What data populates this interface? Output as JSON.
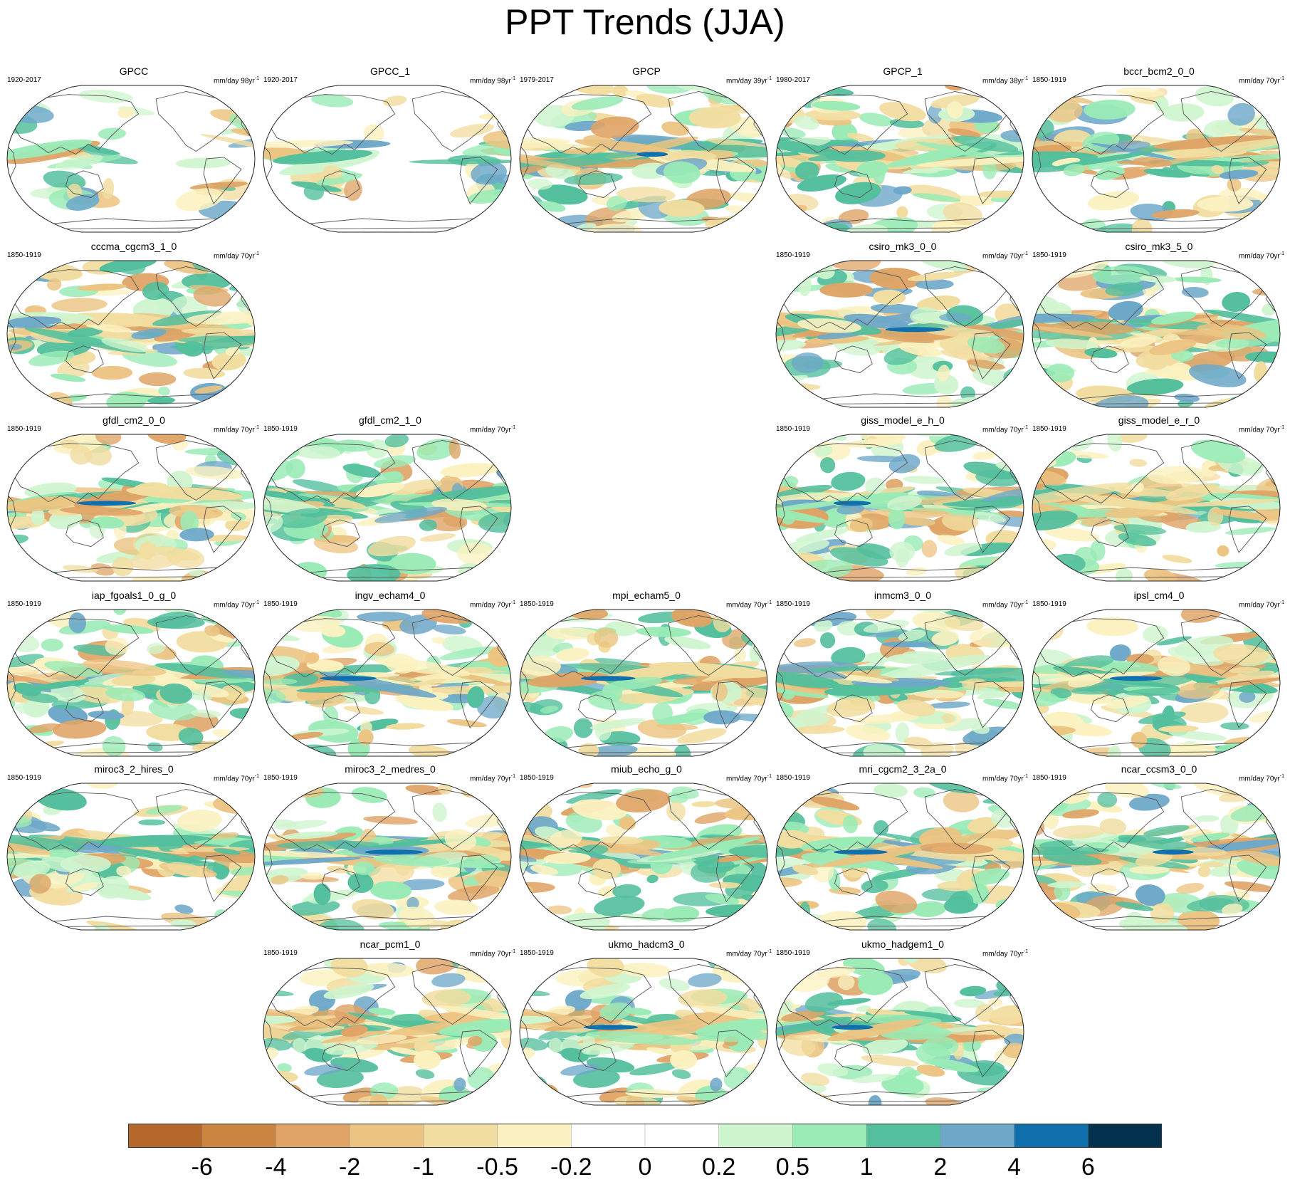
{
  "figure": {
    "title": "PPT Trends (JJA)"
  },
  "panels": [
    {
      "name": "GPCC",
      "period": "1920-2017",
      "units": "mm/day 98yr",
      "units_exp": "-1",
      "col": 0,
      "row": 0,
      "seed": 11,
      "coverage": "land"
    },
    {
      "name": "GPCC_1",
      "period": "1920-2017",
      "units": "mm/day 98yr",
      "units_exp": "-1",
      "col": 1,
      "row": 0,
      "seed": 12,
      "coverage": "land"
    },
    {
      "name": "GPCP",
      "period": "1979-2017",
      "units": "mm/day 39yr",
      "units_exp": "-1",
      "col": 2,
      "row": 0,
      "seed": 13,
      "coverage": "global"
    },
    {
      "name": "GPCP_1",
      "period": "1980-2017",
      "units": "mm/day 38yr",
      "units_exp": "-1",
      "col": 3,
      "row": 0,
      "seed": 14,
      "coverage": "global"
    },
    {
      "name": "bccr_bcm2_0_0",
      "period": "1850-1919",
      "units": "mm/day 70yr",
      "units_exp": "-1",
      "col": 4,
      "row": 0,
      "seed": 15,
      "coverage": "global"
    },
    {
      "name": "cccma_cgcm3_1_0",
      "period": "1850-1919",
      "units": "mm/day 70yr",
      "units_exp": "-1",
      "col": 0,
      "row": 1,
      "seed": 21,
      "coverage": "global"
    },
    {
      "name": "csiro_mk3_0_0",
      "period": "1850-1919",
      "units": "mm/day 70yr",
      "units_exp": "-1",
      "col": 3,
      "row": 1,
      "seed": 24,
      "coverage": "global"
    },
    {
      "name": "csiro_mk3_5_0",
      "period": "1850-1919",
      "units": "mm/day 70yr",
      "units_exp": "-1",
      "col": 4,
      "row": 1,
      "seed": 25,
      "coverage": "global"
    },
    {
      "name": "gfdl_cm2_0_0",
      "period": "1850-1919",
      "units": "mm/day 70yr",
      "units_exp": "-1",
      "col": 0,
      "row": 2,
      "seed": 31,
      "coverage": "global"
    },
    {
      "name": "gfdl_cm2_1_0",
      "period": "1850-1919",
      "units": "mm/day 70yr",
      "units_exp": "-1",
      "col": 1,
      "row": 2,
      "seed": 32,
      "coverage": "global"
    },
    {
      "name": "giss_model_e_h_0",
      "period": "1850-1919",
      "units": "mm/day 70yr",
      "units_exp": "-1",
      "col": 3,
      "row": 2,
      "seed": 34,
      "coverage": "global"
    },
    {
      "name": "giss_model_e_r_0",
      "period": "1850-1919",
      "units": "mm/day 70yr",
      "units_exp": "-1",
      "col": 4,
      "row": 2,
      "seed": 35,
      "coverage": "global"
    },
    {
      "name": "iap_fgoals1_0_g_0",
      "period": "1850-1919",
      "units": "mm/day 70yr",
      "units_exp": "-1",
      "col": 0,
      "row": 3,
      "seed": 41,
      "coverage": "global"
    },
    {
      "name": "ingv_echam4_0",
      "period": "1850-1919",
      "units": "mm/day 70yr",
      "units_exp": "-1",
      "col": 1,
      "row": 3,
      "seed": 42,
      "coverage": "global"
    },
    {
      "name": "mpi_echam5_0",
      "period": "1850-1919",
      "units": "mm/day 70yr",
      "units_exp": "-1",
      "col": 2,
      "row": 3,
      "seed": 43,
      "coverage": "global"
    },
    {
      "name": "inmcm3_0_0",
      "period": "1850-1919",
      "units": "mm/day 70yr",
      "units_exp": "-1",
      "col": 3,
      "row": 3,
      "seed": 44,
      "coverage": "global"
    },
    {
      "name": "ipsl_cm4_0",
      "period": "1850-1919",
      "units": "mm/day 70yr",
      "units_exp": "-1",
      "col": 4,
      "row": 3,
      "seed": 45,
      "coverage": "global"
    },
    {
      "name": "miroc3_2_hires_0",
      "period": "1850-1919",
      "units": "mm/day 70yr",
      "units_exp": "-1",
      "col": 0,
      "row": 4,
      "seed": 51,
      "coverage": "global"
    },
    {
      "name": "miroc3_2_medres_0",
      "period": "1850-1919",
      "units": "mm/day 70yr",
      "units_exp": "-1",
      "col": 1,
      "row": 4,
      "seed": 52,
      "coverage": "global"
    },
    {
      "name": "miub_echo_g_0",
      "period": "1850-1919",
      "units": "mm/day 70yr",
      "units_exp": "-1",
      "col": 2,
      "row": 4,
      "seed": 53,
      "coverage": "global"
    },
    {
      "name": "mri_cgcm2_3_2a_0",
      "period": "1850-1919",
      "units": "mm/day 70yr",
      "units_exp": "-1",
      "col": 3,
      "row": 4,
      "seed": 54,
      "coverage": "global"
    },
    {
      "name": "ncar_ccsm3_0_0",
      "period": "1850-1919",
      "units": "mm/day 70yr",
      "units_exp": "-1",
      "col": 4,
      "row": 4,
      "seed": 55,
      "coverage": "global"
    },
    {
      "name": "ncar_pcm1_0",
      "period": "1850-1919",
      "units": "mm/day 70yr",
      "units_exp": "-1",
      "col": 1,
      "row": 5,
      "seed": 62,
      "coverage": "global"
    },
    {
      "name": "ukmo_hadcm3_0",
      "period": "1850-1919",
      "units": "mm/day 70yr",
      "units_exp": "-1",
      "col": 2,
      "row": 5,
      "seed": 63,
      "coverage": "global"
    },
    {
      "name": "ukmo_hadgem1_0",
      "period": "1850-1919",
      "units": "mm/day 70yr",
      "units_exp": "-1",
      "col": 3,
      "row": 5,
      "seed": 64,
      "coverage": "global"
    }
  ],
  "colorbar": {
    "labels": [
      "-6",
      "-4",
      "-2",
      "-1",
      "-0.5",
      "-0.2",
      "0",
      "0.2",
      "0.5",
      "1",
      "2",
      "4",
      "6"
    ],
    "colors": [
      "#b5682a",
      "#cc8540",
      "#dfa466",
      "#ecc482",
      "#f2dda0",
      "#fbf1c0",
      "#ffffff",
      "#ffffff",
      "#cff5cf",
      "#9aebb6",
      "#53bf9c",
      "#6ea8c9",
      "#0f70ad",
      "#02324e"
    ]
  },
  "chart_data": {
    "type": "heatmap",
    "title": "PPT Trends (JJA)",
    "variable": "precipitation trend",
    "units": "mm/day per period",
    "contour_levels": [
      -6,
      -4,
      -2,
      -1,
      -0.5,
      -0.2,
      0,
      0.2,
      0.5,
      1,
      2,
      4,
      6
    ],
    "panel_count": 25
  }
}
